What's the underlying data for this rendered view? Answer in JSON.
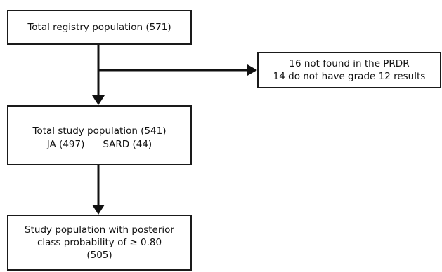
{
  "boxes": {
    "registry": {
      "text": "Total registry population (571)"
    },
    "exclusion": {
      "line1": "16 not found in the PRDR",
      "line2": "14 do not have grade 12 results"
    },
    "study": {
      "line1": "Total study population (541)",
      "ja": "JA (497)",
      "sard": "SARD (44)"
    },
    "posterior": {
      "line1": "Study population with posterior",
      "line2": "class probability of ≥ 0.80",
      "line3": "(505)"
    }
  }
}
